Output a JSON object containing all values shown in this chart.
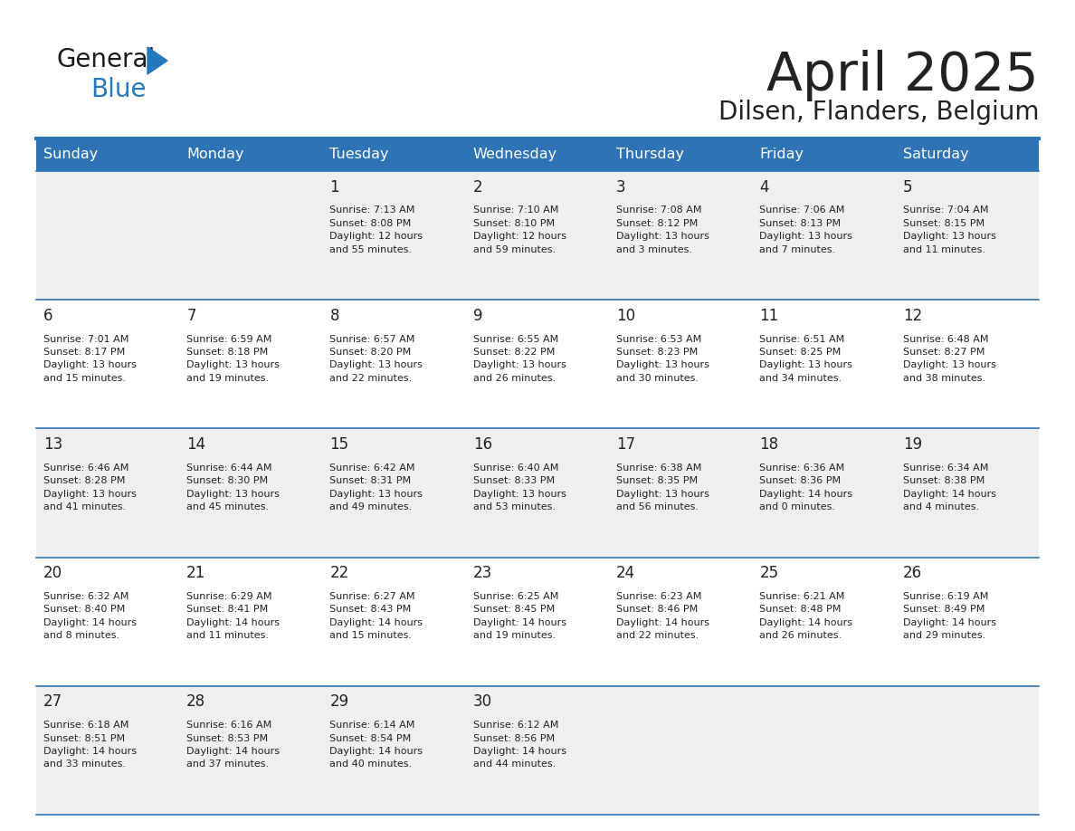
{
  "title": "April 2025",
  "subtitle": "Dilsen, Flanders, Belgium",
  "header_bg": "#2e74b5",
  "header_text_color": "#ffffff",
  "days_of_week": [
    "Sunday",
    "Monday",
    "Tuesday",
    "Wednesday",
    "Thursday",
    "Friday",
    "Saturday"
  ],
  "cell_bg_even": "#efefef",
  "cell_bg_odd": "#ffffff",
  "divider_color": "#2e74b5",
  "text_color": "#222222",
  "logo_general_color": "#1a1a1a",
  "logo_blue_color": "#2479bd",
  "calendar": [
    [
      {
        "day": null,
        "info": null
      },
      {
        "day": null,
        "info": null
      },
      {
        "day": 1,
        "info": "Sunrise: 7:13 AM\nSunset: 8:08 PM\nDaylight: 12 hours\nand 55 minutes."
      },
      {
        "day": 2,
        "info": "Sunrise: 7:10 AM\nSunset: 8:10 PM\nDaylight: 12 hours\nand 59 minutes."
      },
      {
        "day": 3,
        "info": "Sunrise: 7:08 AM\nSunset: 8:12 PM\nDaylight: 13 hours\nand 3 minutes."
      },
      {
        "day": 4,
        "info": "Sunrise: 7:06 AM\nSunset: 8:13 PM\nDaylight: 13 hours\nand 7 minutes."
      },
      {
        "day": 5,
        "info": "Sunrise: 7:04 AM\nSunset: 8:15 PM\nDaylight: 13 hours\nand 11 minutes."
      }
    ],
    [
      {
        "day": 6,
        "info": "Sunrise: 7:01 AM\nSunset: 8:17 PM\nDaylight: 13 hours\nand 15 minutes."
      },
      {
        "day": 7,
        "info": "Sunrise: 6:59 AM\nSunset: 8:18 PM\nDaylight: 13 hours\nand 19 minutes."
      },
      {
        "day": 8,
        "info": "Sunrise: 6:57 AM\nSunset: 8:20 PM\nDaylight: 13 hours\nand 22 minutes."
      },
      {
        "day": 9,
        "info": "Sunrise: 6:55 AM\nSunset: 8:22 PM\nDaylight: 13 hours\nand 26 minutes."
      },
      {
        "day": 10,
        "info": "Sunrise: 6:53 AM\nSunset: 8:23 PM\nDaylight: 13 hours\nand 30 minutes."
      },
      {
        "day": 11,
        "info": "Sunrise: 6:51 AM\nSunset: 8:25 PM\nDaylight: 13 hours\nand 34 minutes."
      },
      {
        "day": 12,
        "info": "Sunrise: 6:48 AM\nSunset: 8:27 PM\nDaylight: 13 hours\nand 38 minutes."
      }
    ],
    [
      {
        "day": 13,
        "info": "Sunrise: 6:46 AM\nSunset: 8:28 PM\nDaylight: 13 hours\nand 41 minutes."
      },
      {
        "day": 14,
        "info": "Sunrise: 6:44 AM\nSunset: 8:30 PM\nDaylight: 13 hours\nand 45 minutes."
      },
      {
        "day": 15,
        "info": "Sunrise: 6:42 AM\nSunset: 8:31 PM\nDaylight: 13 hours\nand 49 minutes."
      },
      {
        "day": 16,
        "info": "Sunrise: 6:40 AM\nSunset: 8:33 PM\nDaylight: 13 hours\nand 53 minutes."
      },
      {
        "day": 17,
        "info": "Sunrise: 6:38 AM\nSunset: 8:35 PM\nDaylight: 13 hours\nand 56 minutes."
      },
      {
        "day": 18,
        "info": "Sunrise: 6:36 AM\nSunset: 8:36 PM\nDaylight: 14 hours\nand 0 minutes."
      },
      {
        "day": 19,
        "info": "Sunrise: 6:34 AM\nSunset: 8:38 PM\nDaylight: 14 hours\nand 4 minutes."
      }
    ],
    [
      {
        "day": 20,
        "info": "Sunrise: 6:32 AM\nSunset: 8:40 PM\nDaylight: 14 hours\nand 8 minutes."
      },
      {
        "day": 21,
        "info": "Sunrise: 6:29 AM\nSunset: 8:41 PM\nDaylight: 14 hours\nand 11 minutes."
      },
      {
        "day": 22,
        "info": "Sunrise: 6:27 AM\nSunset: 8:43 PM\nDaylight: 14 hours\nand 15 minutes."
      },
      {
        "day": 23,
        "info": "Sunrise: 6:25 AM\nSunset: 8:45 PM\nDaylight: 14 hours\nand 19 minutes."
      },
      {
        "day": 24,
        "info": "Sunrise: 6:23 AM\nSunset: 8:46 PM\nDaylight: 14 hours\nand 22 minutes."
      },
      {
        "day": 25,
        "info": "Sunrise: 6:21 AM\nSunset: 8:48 PM\nDaylight: 14 hours\nand 26 minutes."
      },
      {
        "day": 26,
        "info": "Sunrise: 6:19 AM\nSunset: 8:49 PM\nDaylight: 14 hours\nand 29 minutes."
      }
    ],
    [
      {
        "day": 27,
        "info": "Sunrise: 6:18 AM\nSunset: 8:51 PM\nDaylight: 14 hours\nand 33 minutes."
      },
      {
        "day": 28,
        "info": "Sunrise: 6:16 AM\nSunset: 8:53 PM\nDaylight: 14 hours\nand 37 minutes."
      },
      {
        "day": 29,
        "info": "Sunrise: 6:14 AM\nSunset: 8:54 PM\nDaylight: 14 hours\nand 40 minutes."
      },
      {
        "day": 30,
        "info": "Sunrise: 6:12 AM\nSunset: 8:56 PM\nDaylight: 14 hours\nand 44 minutes."
      },
      {
        "day": null,
        "info": null
      },
      {
        "day": null,
        "info": null
      },
      {
        "day": null,
        "info": null
      }
    ]
  ]
}
